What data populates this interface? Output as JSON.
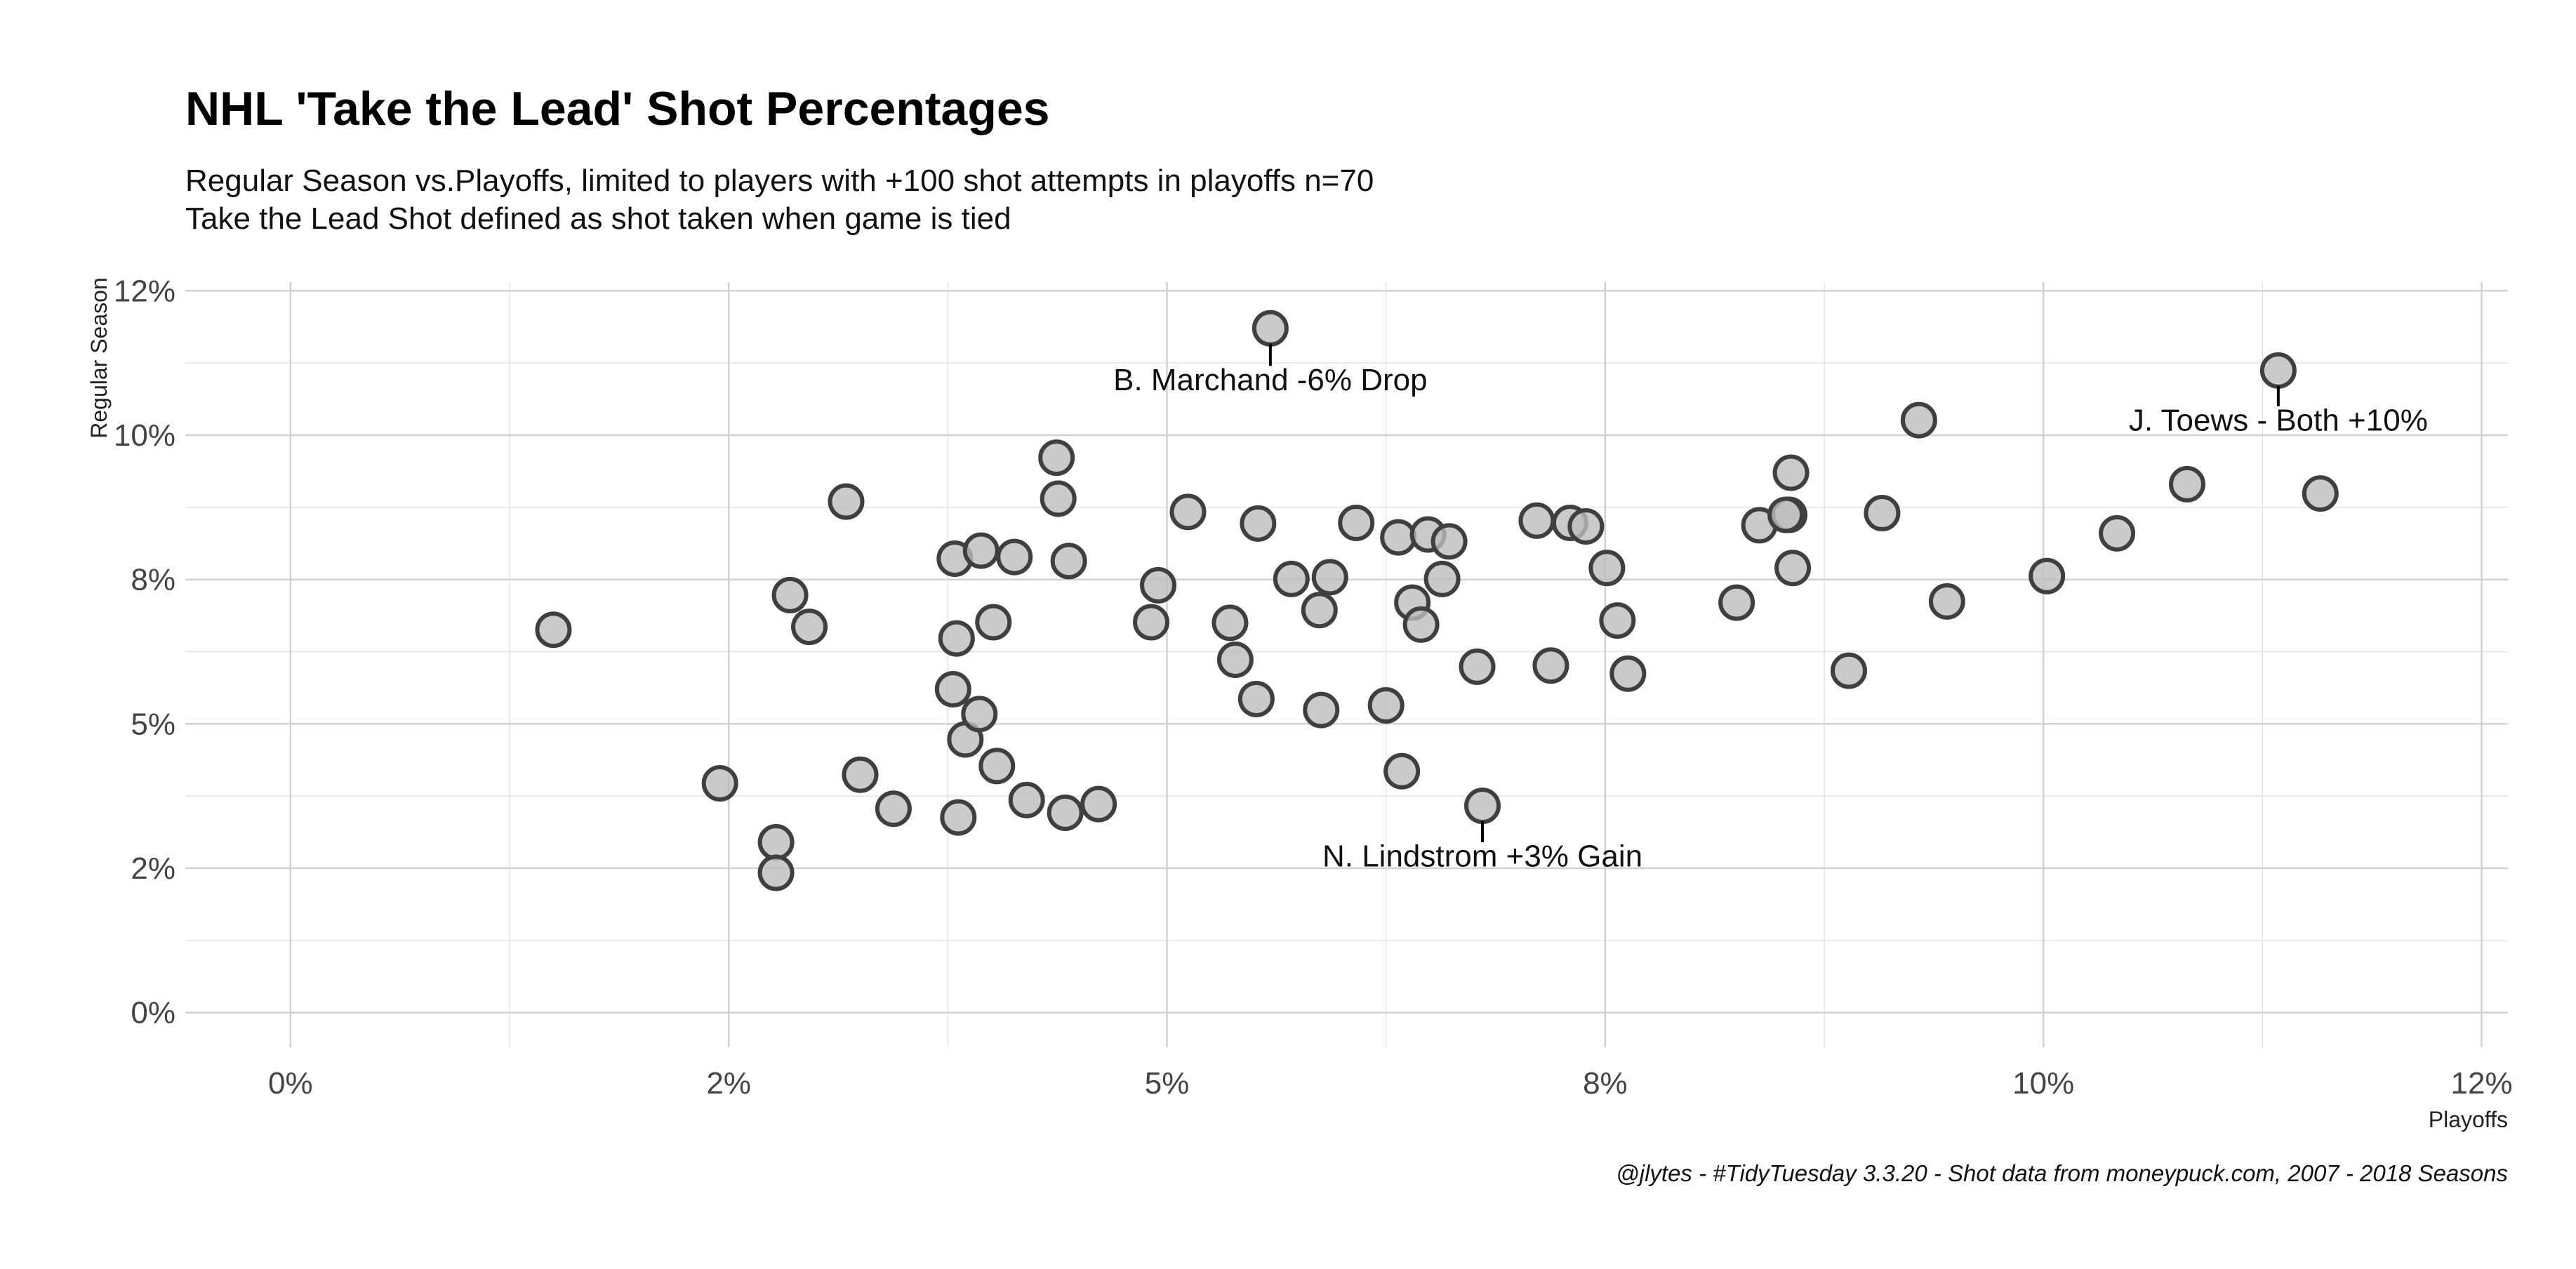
{
  "chart_data": {
    "type": "scatter",
    "title": "NHL 'Take the Lead' Shot Percentages",
    "subtitle": [
      "Regular Season vs.Playoffs, limited to players with +100 shot attempts in playoffs n=70",
      "Take the Lead Shot defined as shot taken when game is tied"
    ],
    "xlabel": "Playoffs",
    "ylabel": "Regular Season",
    "caption": "@jlytes - #TidyTuesday 3.3.20 - Shot data from moneypuck.com, 2007 - 2018 Seasons",
    "xlim": [
      -0.006,
      0.1265
    ],
    "ylim": [
      -0.006,
      0.1265
    ],
    "x_ticks": [
      0,
      0.025,
      0.05,
      0.075,
      0.1,
      0.125
    ],
    "x_tick_labels": [
      "0%",
      "2%",
      "5%",
      "8%",
      "10%",
      "12%"
    ],
    "y_ticks": [
      0,
      0.025,
      0.05,
      0.075,
      0.1,
      0.125
    ],
    "y_tick_labels": [
      "0%",
      "2%",
      "5%",
      "8%",
      "10%",
      "12%"
    ],
    "grid": true,
    "point_color": "#bdbdbd",
    "point_edge_color": "#3f3f3f",
    "points": [
      {
        "x": 0.015,
        "y": 0.0663
      },
      {
        "x": 0.0245,
        "y": 0.0397
      },
      {
        "x": 0.0277,
        "y": 0.0295
      },
      {
        "x": 0.0277,
        "y": 0.0242
      },
      {
        "x": 0.0285,
        "y": 0.0723
      },
      {
        "x": 0.0296,
        "y": 0.0668
      },
      {
        "x": 0.0317,
        "y": 0.0885
      },
      {
        "x": 0.0325,
        "y": 0.0412
      },
      {
        "x": 0.0344,
        "y": 0.0353
      },
      {
        "x": 0.0378,
        "y": 0.056
      },
      {
        "x": 0.0379,
        "y": 0.0786
      },
      {
        "x": 0.038,
        "y": 0.0648
      },
      {
        "x": 0.0381,
        "y": 0.0338
      },
      {
        "x": 0.0385,
        "y": 0.0473
      },
      {
        "x": 0.0393,
        "y": 0.0517
      },
      {
        "x": 0.0394,
        "y": 0.08
      },
      {
        "x": 0.0401,
        "y": 0.0676
      },
      {
        "x": 0.0403,
        "y": 0.0427
      },
      {
        "x": 0.0413,
        "y": 0.0789
      },
      {
        "x": 0.042,
        "y": 0.0368
      },
      {
        "x": 0.0437,
        "y": 0.0961
      },
      {
        "x": 0.0438,
        "y": 0.089
      },
      {
        "x": 0.0442,
        "y": 0.0346
      },
      {
        "x": 0.0444,
        "y": 0.0782
      },
      {
        "x": 0.0461,
        "y": 0.0361
      },
      {
        "x": 0.0491,
        "y": 0.0676
      },
      {
        "x": 0.0495,
        "y": 0.074
      },
      {
        "x": 0.0512,
        "y": 0.0867
      },
      {
        "x": 0.0536,
        "y": 0.0675
      },
      {
        "x": 0.0539,
        "y": 0.0611
      },
      {
        "x": 0.0551,
        "y": 0.0543
      },
      {
        "x": 0.0552,
        "y": 0.0847
      },
      {
        "x": 0.0559,
        "y": 0.1185
      },
      {
        "x": 0.0571,
        "y": 0.0751
      },
      {
        "x": 0.0587,
        "y": 0.0697
      },
      {
        "x": 0.0588,
        "y": 0.0524
      },
      {
        "x": 0.0593,
        "y": 0.0754
      },
      {
        "x": 0.0608,
        "y": 0.0848
      },
      {
        "x": 0.0625,
        "y": 0.0532
      },
      {
        "x": 0.0632,
        "y": 0.0823
      },
      {
        "x": 0.0634,
        "y": 0.0418
      },
      {
        "x": 0.064,
        "y": 0.071
      },
      {
        "x": 0.0645,
        "y": 0.0672
      },
      {
        "x": 0.0649,
        "y": 0.0828
      },
      {
        "x": 0.0657,
        "y": 0.0751
      },
      {
        "x": 0.0661,
        "y": 0.0816
      },
      {
        "x": 0.0677,
        "y": 0.0599
      },
      {
        "x": 0.068,
        "y": 0.0358
      },
      {
        "x": 0.0711,
        "y": 0.0852
      },
      {
        "x": 0.0719,
        "y": 0.0601
      },
      {
        "x": 0.073,
        "y": 0.0848
      },
      {
        "x": 0.0739,
        "y": 0.0842
      },
      {
        "x": 0.0751,
        "y": 0.077
      },
      {
        "x": 0.0757,
        "y": 0.0679
      },
      {
        "x": 0.0763,
        "y": 0.0587
      },
      {
        "x": 0.0825,
        "y": 0.071
      },
      {
        "x": 0.0838,
        "y": 0.0844
      },
      {
        "x": 0.0889,
        "y": 0.0592
      },
      {
        "x": 0.0856,
        "y": 0.0935
      },
      {
        "x": 0.0855,
        "y": 0.0862
      },
      {
        "x": 0.0853,
        "y": 0.0862
      },
      {
        "x": 0.0857,
        "y": 0.077
      },
      {
        "x": 0.0908,
        "y": 0.0865
      },
      {
        "x": 0.0929,
        "y": 0.1026
      },
      {
        "x": 0.0945,
        "y": 0.0712
      },
      {
        "x": 0.1002,
        "y": 0.0756
      },
      {
        "x": 0.1042,
        "y": 0.083
      },
      {
        "x": 0.1082,
        "y": 0.0915
      },
      {
        "x": 0.1134,
        "y": 0.1112
      },
      {
        "x": 0.1158,
        "y": 0.0899
      }
    ],
    "annotations": [
      {
        "label": "B. Marchand -6% Drop",
        "x": 0.0559,
        "y": 0.1185,
        "segment_to_y": 0.112,
        "text_y": 0.109
      },
      {
        "label": "J. Toews - Both +10%",
        "x": 0.1134,
        "y": 0.1112,
        "segment_to_y": 0.105,
        "text_y": 0.102
      },
      {
        "label": "N. Lindstrom +3% Gain",
        "x": 0.068,
        "y": 0.0358,
        "segment_to_y": 0.0295,
        "text_y": 0.0265
      }
    ]
  }
}
